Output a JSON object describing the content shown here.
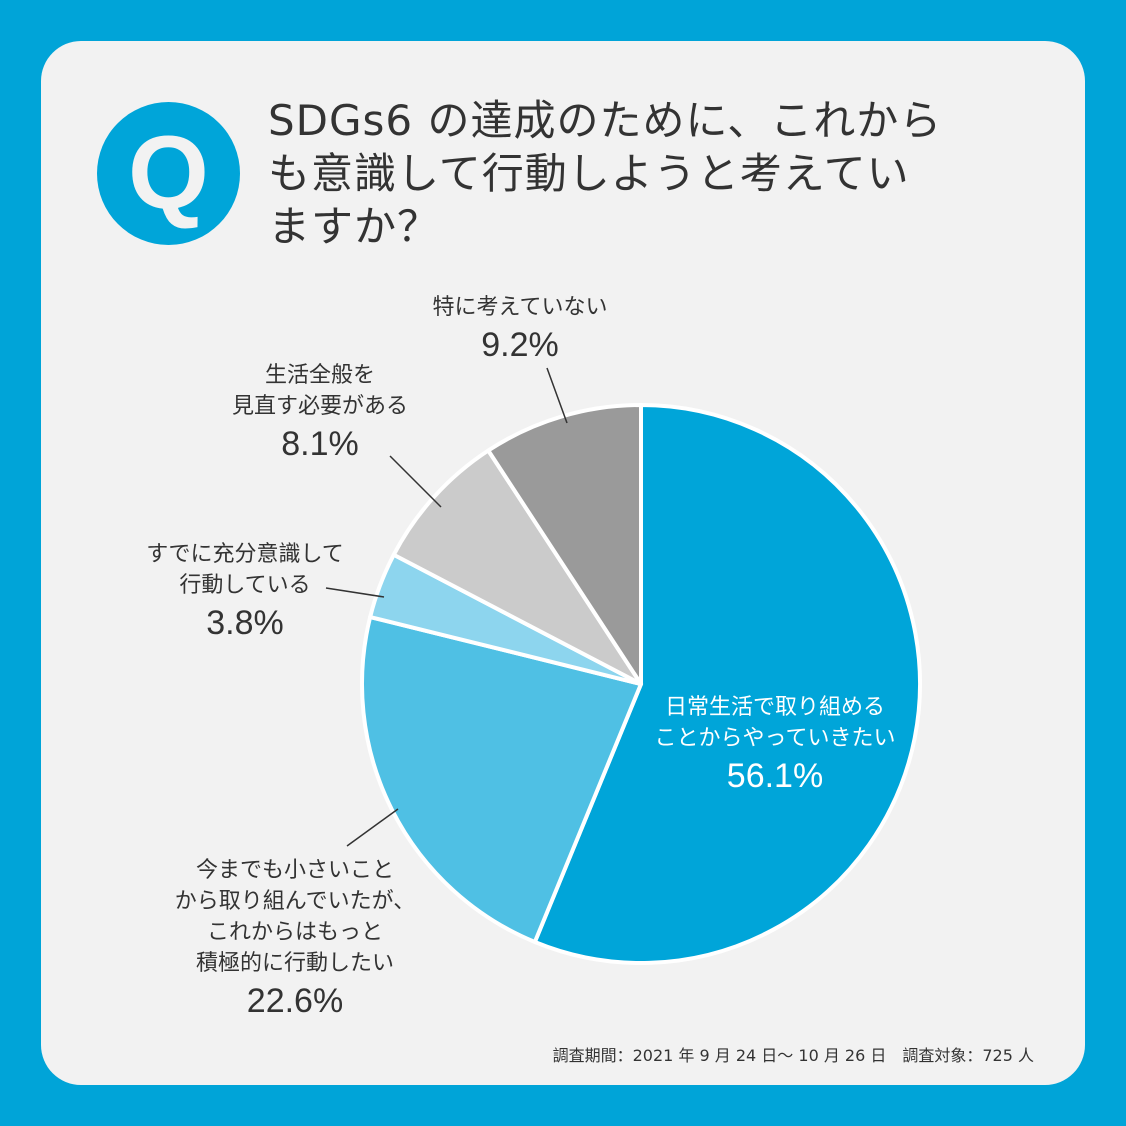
{
  "badge": {
    "letter": "Q"
  },
  "title": {
    "lines": [
      "SDGs6 の達成のために、これから",
      "も意識して行動しようと考えてい",
      "ますか？"
    ]
  },
  "colors": {
    "frame": "#00a4d8",
    "card": "#f2f2f2",
    "text": "#333333"
  },
  "chart_data": {
    "type": "pie",
    "title": "SDGs6 の達成のために、これからも意識して行動しようと考えていますか？",
    "start_angle": "12 o'clock, clockwise",
    "slices": [
      {
        "label": "日常生活で取り組めることからやっていきたい",
        "value": 56.1,
        "color": "#00a5d9"
      },
      {
        "label": "今までも小さいことから取り組んでいたが、これからはもっと積極的に行動したい",
        "value": 22.6,
        "color": "#4fc0e4"
      },
      {
        "label": "すでに充分意識して行動している",
        "value": 3.8,
        "color": "#8dd5ee"
      },
      {
        "label": "生活全般を見直す必要がある",
        "value": 8.1,
        "color": "#cbcbcb"
      },
      {
        "label": "特に考えていない",
        "value": 9.2,
        "color": "#9a9a9a"
      }
    ],
    "unit": "%"
  },
  "labels": {
    "daily": {
      "lines": [
        "日常生活で取り組める",
        "ことからやっていきたい"
      ],
      "pct": "56.1%"
    },
    "more_active": {
      "lines": [
        "今までも小さいこと",
        "から取り組んでいたが、",
        "これからはもっと",
        "積極的に行動したい"
      ],
      "pct": "22.6%"
    },
    "already": {
      "lines": [
        "すでに充分意識して",
        "行動している"
      ],
      "pct": "3.8%"
    },
    "review": {
      "lines": [
        "生活全般を",
        "見直す必要がある"
      ],
      "pct": "8.1%"
    },
    "none": {
      "lines": [
        "特に考えていない"
      ],
      "pct": "9.2%"
    }
  },
  "footnote": "調査期間：2021 年 9 月 24 日～ 10 月 26 日　調査対象：725 人"
}
